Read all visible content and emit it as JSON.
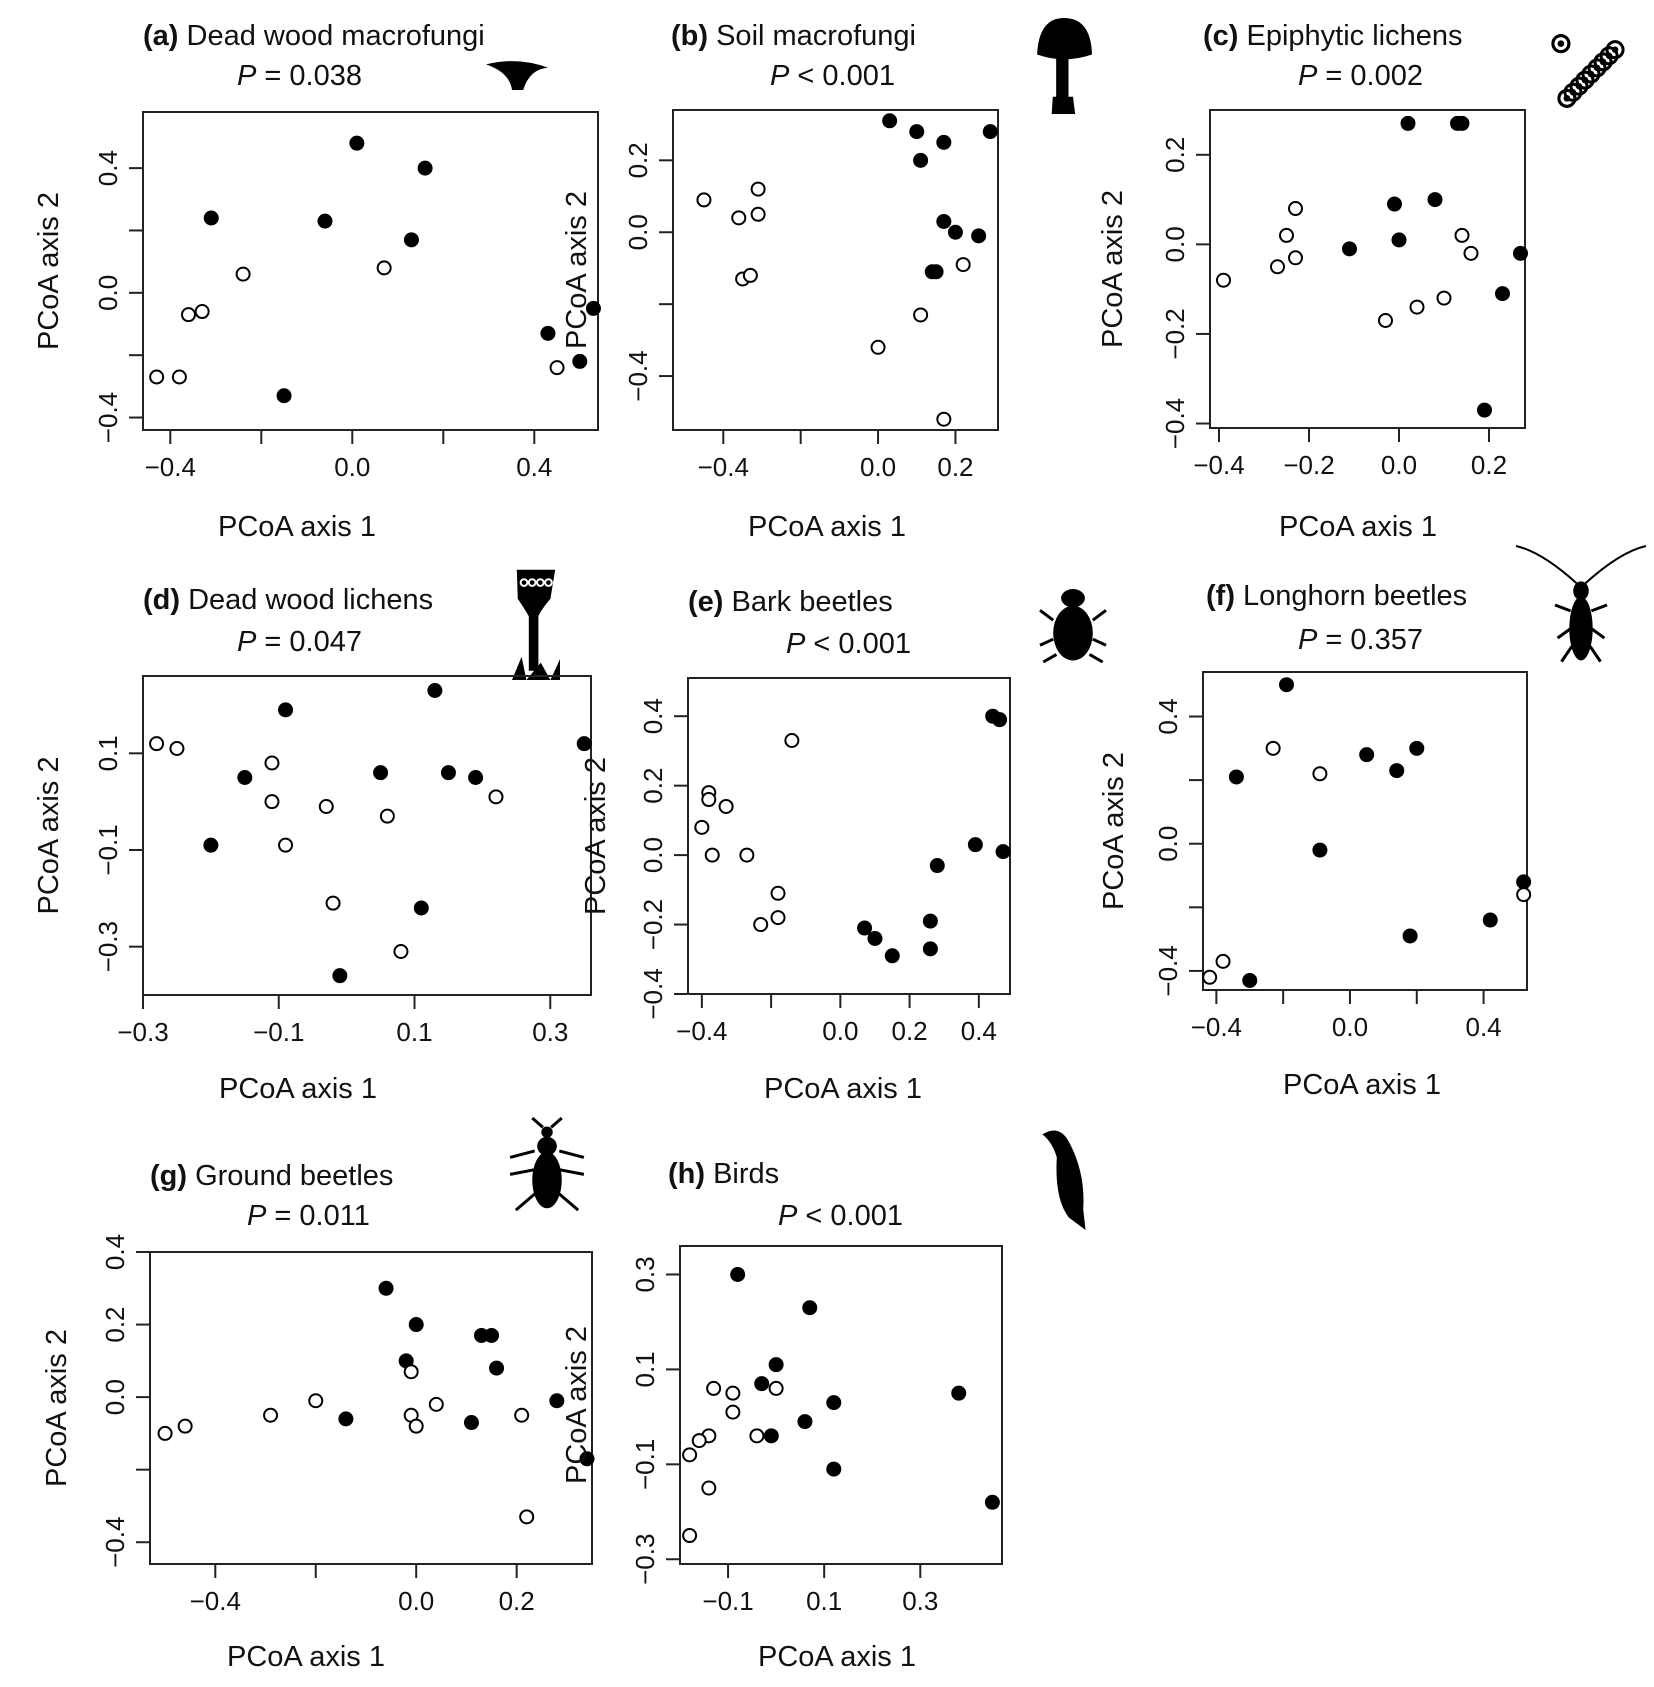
{
  "chart_data": [
    {
      "type": "scatter",
      "panel_label": "(a)",
      "title": "Dead wood macrofungi",
      "p_value": "= 0.038",
      "xlabel": "PCoA axis 1",
      "ylabel": "PCoA axis 2",
      "xlim": [
        -0.46,
        0.54
      ],
      "ylim": [
        -0.44,
        0.58
      ],
      "xticks": [
        -0.4,
        0.0,
        0.4
      ],
      "yticks": [
        -0.4,
        0.0,
        0.4
      ],
      "xtick_labels": [
        "−0.4",
        "0.0",
        "0.4"
      ],
      "ytick_labels": [
        "−0.4",
        "0.0",
        "0.4"
      ],
      "icon": "bracket-fungus-icon",
      "grid": false,
      "legend": "none",
      "series": [
        {
          "marker": "filled",
          "points": [
            [
              0.01,
              0.48
            ],
            [
              0.16,
              0.4
            ],
            [
              -0.31,
              0.24
            ],
            [
              -0.06,
              0.23
            ],
            [
              0.13,
              0.17
            ],
            [
              0.53,
              -0.05
            ],
            [
              0.43,
              -0.13
            ],
            [
              0.5,
              -0.22
            ],
            [
              -0.15,
              -0.33
            ]
          ]
        },
        {
          "marker": "open",
          "points": [
            [
              -0.24,
              0.06
            ],
            [
              0.07,
              0.08
            ],
            [
              -0.36,
              -0.07
            ],
            [
              -0.33,
              -0.06
            ],
            [
              -0.43,
              -0.27
            ],
            [
              -0.38,
              -0.27
            ],
            [
              0.45,
              -0.24
            ]
          ]
        }
      ]
    },
    {
      "type": "scatter",
      "panel_label": "(b)",
      "title": "Soil macrofungi",
      "p_value": "< 0.001",
      "xlabel": "PCoA axis 1",
      "ylabel": "PCoA axis 2",
      "xlim": [
        -0.53,
        0.31
      ],
      "ylim": [
        -0.55,
        0.34
      ],
      "xticks": [
        -0.4,
        0.0,
        0.2
      ],
      "yticks": [
        -0.4,
        0.0,
        0.2
      ],
      "xtick_labels": [
        "−0.4",
        "0.0",
        "0.2"
      ],
      "ytick_labels": [
        "−0.4",
        "0.0",
        "0.2"
      ],
      "icon": "mushroom-icon",
      "grid": false,
      "legend": "none",
      "series": [
        {
          "marker": "filled",
          "points": [
            [
              0.03,
              0.31
            ],
            [
              0.1,
              0.28
            ],
            [
              0.17,
              0.25
            ],
            [
              0.29,
              0.28
            ],
            [
              0.11,
              0.2
            ],
            [
              0.17,
              0.03
            ],
            [
              0.2,
              0.0
            ],
            [
              0.26,
              -0.01
            ],
            [
              0.15,
              -0.11
            ],
            [
              0.14,
              -0.11
            ]
          ]
        },
        {
          "marker": "open",
          "points": [
            [
              -0.45,
              0.09
            ],
            [
              -0.31,
              0.12
            ],
            [
              -0.36,
              0.04
            ],
            [
              -0.31,
              0.05
            ],
            [
              -0.35,
              -0.13
            ],
            [
              -0.33,
              -0.12
            ],
            [
              0.22,
              -0.09
            ],
            [
              0.11,
              -0.23
            ],
            [
              0.0,
              -0.32
            ],
            [
              0.17,
              -0.52
            ]
          ]
        }
      ]
    },
    {
      "type": "scatter",
      "panel_label": "(c)",
      "title": "Epiphytic lichens",
      "p_value": "= 0.002",
      "xlabel": "PCoA axis 1",
      "ylabel": "PCoA axis 2",
      "xlim": [
        -0.42,
        0.28
      ],
      "ylim": [
        -0.41,
        0.3
      ],
      "xticks": [
        -0.4,
        -0.2,
        0.0,
        0.2
      ],
      "yticks": [
        -0.4,
        -0.2,
        0.0,
        0.2
      ],
      "xtick_labels": [
        "−0.4",
        "−0.2",
        "0.0",
        "0.2"
      ],
      "ytick_labels": [
        "−0.4",
        "−0.2",
        "0.0",
        "0.2"
      ],
      "icon": "lichen-icon",
      "grid": false,
      "legend": "none",
      "series": [
        {
          "marker": "filled",
          "points": [
            [
              0.02,
              0.27
            ],
            [
              0.14,
              0.27
            ],
            [
              0.13,
              0.27
            ],
            [
              -0.01,
              0.09
            ],
            [
              0.08,
              0.1
            ],
            [
              0.0,
              0.01
            ],
            [
              -0.11,
              -0.01
            ],
            [
              0.27,
              -0.02
            ],
            [
              0.23,
              -0.11
            ],
            [
              0.19,
              -0.37
            ]
          ]
        },
        {
          "marker": "open",
          "points": [
            [
              -0.39,
              -0.08
            ],
            [
              -0.25,
              0.02
            ],
            [
              -0.23,
              0.08
            ],
            [
              -0.27,
              -0.05
            ],
            [
              -0.23,
              -0.03
            ],
            [
              0.14,
              0.02
            ],
            [
              0.16,
              -0.02
            ],
            [
              0.1,
              -0.12
            ],
            [
              0.04,
              -0.14
            ],
            [
              -0.03,
              -0.17
            ]
          ]
        }
      ]
    },
    {
      "type": "scatter",
      "panel_label": "(d)",
      "title": "Dead wood lichens",
      "p_value": "= 0.047",
      "xlabel": "PCoA axis 1",
      "ylabel": "PCoA axis 2",
      "xlim": [
        -0.3,
        0.36
      ],
      "ylim": [
        -0.4,
        0.26
      ],
      "xticks": [
        -0.3,
        -0.1,
        0.1,
        0.3
      ],
      "yticks": [
        -0.3,
        -0.1,
        0.1
      ],
      "xtick_labels": [
        "−0.3",
        "−0.1",
        "0.1",
        "0.3"
      ],
      "ytick_labels": [
        "−0.3",
        "−0.1",
        "0.1"
      ],
      "icon": "cup-lichen-icon",
      "grid": false,
      "legend": "none",
      "series": [
        {
          "marker": "filled",
          "points": [
            [
              0.13,
              0.23
            ],
            [
              -0.09,
              0.19
            ],
            [
              0.35,
              0.12
            ],
            [
              -0.15,
              0.05
            ],
            [
              0.05,
              0.06
            ],
            [
              0.15,
              0.06
            ],
            [
              0.19,
              0.05
            ],
            [
              -0.2,
              -0.09
            ],
            [
              0.11,
              -0.22
            ],
            [
              -0.01,
              -0.36
            ]
          ]
        },
        {
          "marker": "open",
          "points": [
            [
              -0.28,
              0.12
            ],
            [
              -0.25,
              0.11
            ],
            [
              -0.11,
              0.08
            ],
            [
              -0.11,
              0.0
            ],
            [
              -0.03,
              -0.01
            ],
            [
              0.06,
              -0.03
            ],
            [
              0.22,
              0.01
            ],
            [
              -0.09,
              -0.09
            ],
            [
              -0.02,
              -0.21
            ],
            [
              0.08,
              -0.31
            ]
          ]
        }
      ]
    },
    {
      "type": "scatter",
      "panel_label": "(e)",
      "title": "Bark beetles",
      "p_value": "< 0.001",
      "xlabel": "PCoA axis 1",
      "ylabel": "PCoA axis 2",
      "xlim": [
        -0.44,
        0.49
      ],
      "ylim": [
        -0.4,
        0.51
      ],
      "xticks": [
        -0.4,
        0.0,
        0.2,
        0.4
      ],
      "yticks": [
        -0.4,
        -0.2,
        0.0,
        0.2,
        0.4
      ],
      "xtick_labels": [
        "−0.4",
        "0.0",
        "0.2",
        "0.4"
      ],
      "ytick_labels": [
        "−0.4",
        "−0.2",
        "0.0",
        "0.2",
        "0.4"
      ],
      "icon": "bark-beetle-icon",
      "grid": false,
      "legend": "none",
      "series": [
        {
          "marker": "filled",
          "points": [
            [
              0.44,
              0.4
            ],
            [
              0.46,
              0.39
            ],
            [
              0.47,
              0.01
            ],
            [
              0.39,
              0.03
            ],
            [
              0.28,
              -0.03
            ],
            [
              0.26,
              -0.19
            ],
            [
              0.07,
              -0.21
            ],
            [
              0.1,
              -0.24
            ],
            [
              0.15,
              -0.29
            ],
            [
              0.26,
              -0.27
            ]
          ]
        },
        {
          "marker": "open",
          "points": [
            [
              -0.14,
              0.33
            ],
            [
              -0.38,
              0.18
            ],
            [
              -0.38,
              0.16
            ],
            [
              -0.33,
              0.14
            ],
            [
              -0.4,
              0.08
            ],
            [
              -0.37,
              0.0
            ],
            [
              -0.27,
              0.0
            ],
            [
              -0.18,
              -0.11
            ],
            [
              -0.18,
              -0.18
            ],
            [
              -0.23,
              -0.2
            ]
          ]
        }
      ]
    },
    {
      "type": "scatter",
      "panel_label": "(f)",
      "title": "Longhorn beetles",
      "p_value": "= 0.357",
      "xlabel": "PCoA axis 1",
      "ylabel": "PCoA axis 2",
      "xlim": [
        -0.44,
        0.53
      ],
      "ylim": [
        -0.46,
        0.54
      ],
      "xticks": [
        -0.4,
        0.0,
        0.4
      ],
      "yticks": [
        -0.4,
        0.0,
        0.4
      ],
      "xtick_labels": [
        "−0.4",
        "0.0",
        "0.4"
      ],
      "ytick_labels": [
        "−0.4",
        "0.0",
        "0.4"
      ],
      "icon": "longhorn-beetle-icon",
      "grid": false,
      "legend": "none",
      "series": [
        {
          "marker": "filled",
          "points": [
            [
              -0.19,
              0.5
            ],
            [
              -0.34,
              0.21
            ],
            [
              0.05,
              0.28
            ],
            [
              0.2,
              0.3
            ],
            [
              0.14,
              0.23
            ],
            [
              -0.09,
              -0.02
            ],
            [
              0.52,
              -0.12
            ],
            [
              0.42,
              -0.24
            ],
            [
              0.18,
              -0.29
            ],
            [
              -0.3,
              -0.43
            ]
          ]
        },
        {
          "marker": "open",
          "points": [
            [
              -0.23,
              0.3
            ],
            [
              -0.09,
              0.22
            ],
            [
              0.52,
              -0.16
            ],
            [
              -0.38,
              -0.37
            ],
            [
              -0.42,
              -0.42
            ]
          ]
        }
      ]
    },
    {
      "type": "scatter",
      "panel_label": "(g)",
      "title": "Ground beetles",
      "p_value": "= 0.011",
      "xlabel": "PCoA axis 1",
      "ylabel": "PCoA axis 2",
      "xlim": [
        -0.53,
        0.35
      ],
      "ylim": [
        -0.46,
        0.4
      ],
      "xticks": [
        -0.4,
        0.0,
        0.2
      ],
      "yticks": [
        -0.4,
        0.0,
        0.2,
        0.4
      ],
      "xtick_labels": [
        "−0.4",
        "0.0",
        "0.2"
      ],
      "ytick_labels": [
        "−0.4",
        "0.0",
        "0.2",
        "0.4"
      ],
      "icon": "ground-beetle-icon",
      "grid": false,
      "legend": "none",
      "series": [
        {
          "marker": "filled",
          "points": [
            [
              -0.06,
              0.3
            ],
            [
              0.0,
              0.2
            ],
            [
              0.13,
              0.17
            ],
            [
              0.15,
              0.17
            ],
            [
              -0.02,
              0.1
            ],
            [
              0.16,
              0.08
            ],
            [
              0.28,
              -0.01
            ],
            [
              -0.14,
              -0.06
            ],
            [
              0.11,
              -0.07
            ],
            [
              0.34,
              -0.17
            ]
          ]
        },
        {
          "marker": "open",
          "points": [
            [
              -0.01,
              0.07
            ],
            [
              -0.5,
              -0.1
            ],
            [
              -0.46,
              -0.08
            ],
            [
              -0.29,
              -0.05
            ],
            [
              -0.2,
              -0.01
            ],
            [
              -0.01,
              -0.05
            ],
            [
              0.04,
              -0.02
            ],
            [
              0.0,
              -0.08
            ],
            [
              0.21,
              -0.05
            ],
            [
              0.22,
              -0.33
            ]
          ]
        }
      ]
    },
    {
      "type": "scatter",
      "panel_label": "(h)",
      "title": "Birds",
      "p_value": "< 0.001",
      "xlabel": "PCoA axis 1",
      "ylabel": "PCoA axis 2",
      "xlim": [
        -0.2,
        0.47
      ],
      "ylim": [
        -0.31,
        0.36
      ],
      "xticks": [
        -0.1,
        0.1,
        0.3
      ],
      "yticks": [
        -0.3,
        -0.1,
        0.1,
        0.3
      ],
      "xtick_labels": [
        "−0.1",
        "0.1",
        "0.3"
      ],
      "ytick_labels": [
        "−0.3",
        "−0.1",
        "0.1",
        "0.3"
      ],
      "icon": "bird-icon",
      "grid": false,
      "legend": "none",
      "series": [
        {
          "marker": "filled",
          "points": [
            [
              -0.08,
              0.3
            ],
            [
              0.07,
              0.23
            ],
            [
              0.0,
              0.11
            ],
            [
              -0.03,
              0.07
            ],
            [
              0.38,
              0.05
            ],
            [
              0.12,
              0.03
            ],
            [
              -0.01,
              -0.04
            ],
            [
              0.06,
              -0.01
            ],
            [
              0.12,
              -0.11
            ],
            [
              0.45,
              -0.18
            ]
          ]
        },
        {
          "marker": "open",
          "points": [
            [
              -0.13,
              0.06
            ],
            [
              -0.09,
              0.05
            ],
            [
              0.0,
              0.06
            ],
            [
              -0.09,
              0.01
            ],
            [
              -0.04,
              -0.04
            ],
            [
              -0.14,
              -0.04
            ],
            [
              -0.16,
              -0.05
            ],
            [
              -0.18,
              -0.08
            ],
            [
              -0.14,
              -0.15
            ],
            [
              -0.18,
              -0.25
            ]
          ]
        }
      ]
    }
  ]
}
